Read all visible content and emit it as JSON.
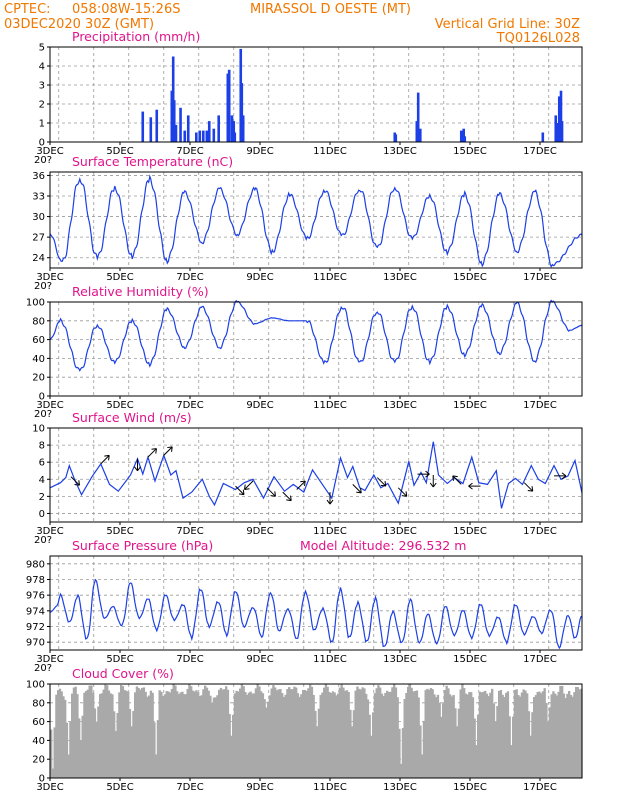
{
  "header": {
    "line1_left": "CPTEC:",
    "coords": "058:08W-15:26S",
    "station": "MIRASSOL D OESTE (MT)",
    "run": "03DEC2020 30Z (GMT)",
    "grid_note": "Vertical Grid Line: 30Z",
    "model": "TQ0126L028",
    "stray_glyph": "20?"
  },
  "chart_data": [
    {
      "id": "precip",
      "type": "bar",
      "title": "Precipitation (mm/h)",
      "ylim": [
        0,
        5
      ],
      "yticks": [
        "0",
        "1",
        "2",
        "3",
        "4",
        "5"
      ],
      "x_unit": "days since 03DEC 00Z",
      "xlim": [
        0,
        15.2
      ],
      "x_ticks": [
        "3DEC",
        "5DEC",
        "7DEC",
        "9DEC",
        "11DEC",
        "13DEC",
        "15DEC",
        "17DEC"
      ],
      "values": [
        [
          2.65,
          1.6
        ],
        [
          2.88,
          1.3
        ],
        [
          3.05,
          1.7
        ],
        [
          3.48,
          2.7
        ],
        [
          3.52,
          4.5
        ],
        [
          3.55,
          2.2
        ],
        [
          3.6,
          0.9
        ],
        [
          3.73,
          1.8
        ],
        [
          3.85,
          0.6
        ],
        [
          3.95,
          1.4
        ],
        [
          4.18,
          0.5
        ],
        [
          4.28,
          0.6
        ],
        [
          4.38,
          0.6
        ],
        [
          4.48,
          0.6
        ],
        [
          4.55,
          1.1
        ],
        [
          4.68,
          0.7
        ],
        [
          4.82,
          1.4
        ],
        [
          5.08,
          3.6
        ],
        [
          5.12,
          3.8
        ],
        [
          5.2,
          1.4
        ],
        [
          5.25,
          1.1
        ],
        [
          5.28,
          0.5
        ],
        [
          5.45,
          4.9
        ],
        [
          5.48,
          3.1
        ],
        [
          5.52,
          1.4
        ],
        [
          9.85,
          0.5
        ],
        [
          9.88,
          0.4
        ],
        [
          10.48,
          1.1
        ],
        [
          10.52,
          2.6
        ],
        [
          10.58,
          0.7
        ],
        [
          11.75,
          0.6
        ],
        [
          11.8,
          0.5
        ],
        [
          11.82,
          0.7
        ],
        [
          11.85,
          0.3
        ],
        [
          14.08,
          0.5
        ],
        [
          14.45,
          1.4
        ],
        [
          14.5,
          1.0
        ],
        [
          14.55,
          2.4
        ],
        [
          14.6,
          2.7
        ],
        [
          14.63,
          1.1
        ]
      ]
    },
    {
      "id": "temp",
      "type": "line",
      "title": "Surface Temperature (nC)",
      "ylim": [
        22.5,
        36.5
      ],
      "yticks": [
        "24",
        "27",
        "30",
        "33",
        "36"
      ],
      "ytick_values": [
        24,
        27,
        30,
        33,
        36
      ],
      "x_unit": "days since 03DEC 00Z",
      "xlim": [
        0,
        15.2
      ],
      "x_ticks": [
        "3DEC",
        "5DEC",
        "7DEC",
        "9DEC",
        "11DEC",
        "13DEC",
        "15DEC",
        "17DEC"
      ],
      "lows": [
        [
          0.35,
          23.3
        ],
        [
          1.35,
          24.0
        ],
        [
          2.35,
          24.2
        ],
        [
          3.35,
          23.6
        ],
        [
          4.35,
          26.3
        ],
        [
          5.35,
          27.4
        ],
        [
          6.35,
          24.9
        ],
        [
          7.35,
          26.8
        ],
        [
          8.35,
          27.2
        ],
        [
          9.35,
          25.4
        ],
        [
          10.35,
          26.8
        ],
        [
          11.35,
          24.8
        ],
        [
          12.35,
          23.2
        ],
        [
          13.35,
          25.0
        ],
        [
          14.35,
          23.0
        ]
      ],
      "highs": [
        [
          0.85,
          35.5
        ],
        [
          1.85,
          34.2
        ],
        [
          2.85,
          35.4
        ],
        [
          3.85,
          33.5
        ],
        [
          4.85,
          34.0
        ],
        [
          5.85,
          34.0
        ],
        [
          6.85,
          33.2
        ],
        [
          7.85,
          33.8
        ],
        [
          8.85,
          34.0
        ],
        [
          9.85,
          34.2
        ],
        [
          10.85,
          33.0
        ],
        [
          11.85,
          33.2
        ],
        [
          12.85,
          33.2
        ],
        [
          13.85,
          33.5
        ]
      ],
      "end": [
        15.2,
        27.3
      ]
    },
    {
      "id": "rh",
      "type": "line",
      "title": "Relative Humidity (%)",
      "ylim": [
        0,
        100
      ],
      "yticks": [
        "0",
        "20",
        "40",
        "60",
        "80",
        "100"
      ],
      "ytick_values": [
        0,
        20,
        40,
        60,
        80,
        100
      ],
      "x_unit": "days since 03DEC 00Z",
      "xlim": [
        0,
        15.2
      ],
      "x_ticks": [
        "3DEC",
        "5DEC",
        "7DEC",
        "9DEC",
        "11DEC",
        "13DEC",
        "15DEC",
        "17DEC"
      ],
      "lows": [
        [
          0.85,
          27
        ],
        [
          1.85,
          36
        ],
        [
          2.85,
          34
        ],
        [
          3.85,
          52
        ],
        [
          4.85,
          52
        ],
        [
          5.85,
          77
        ],
        [
          6.85,
          80
        ],
        [
          7.85,
          35
        ],
        [
          8.85,
          35
        ],
        [
          9.85,
          36
        ],
        [
          10.85,
          36
        ],
        [
          11.85,
          44
        ],
        [
          12.85,
          46
        ],
        [
          13.85,
          38
        ],
        [
          14.85,
          70
        ]
      ],
      "highs": [
        [
          0.3,
          80
        ],
        [
          1.35,
          75
        ],
        [
          2.35,
          80
        ],
        [
          3.35,
          92
        ],
        [
          4.35,
          94
        ],
        [
          5.35,
          100
        ],
        [
          6.35,
          83
        ],
        [
          7.35,
          80
        ],
        [
          8.35,
          95
        ],
        [
          9.35,
          90
        ],
        [
          10.35,
          95
        ],
        [
          11.35,
          95
        ],
        [
          12.35,
          96
        ],
        [
          13.35,
          98
        ],
        [
          14.35,
          100
        ]
      ],
      "end": [
        15.2,
        75
      ]
    },
    {
      "id": "wind",
      "type": "line",
      "title": "Surface Wind (m/s)",
      "ylim": [
        -1,
        10
      ],
      "yticks": [
        "0",
        "2",
        "4",
        "6",
        "8",
        "10"
      ],
      "ytick_values": [
        0,
        2,
        4,
        6,
        8,
        10
      ],
      "x_unit": "days since 03DEC 00Z",
      "xlim": [
        0,
        15.2
      ],
      "x_ticks": [
        "3DEC",
        "5DEC",
        "7DEC",
        "9DEC",
        "11DEC",
        "13DEC",
        "15DEC",
        "17DEC"
      ],
      "points": [
        [
          0,
          3.0
        ],
        [
          0.3,
          3.6
        ],
        [
          0.45,
          4.2
        ],
        [
          0.55,
          5.6
        ],
        [
          0.7,
          4.0
        ],
        [
          0.9,
          2.2
        ],
        [
          1.2,
          4.3
        ],
        [
          1.45,
          5.8
        ],
        [
          1.7,
          3.4
        ],
        [
          1.95,
          2.6
        ],
        [
          2.3,
          4.5
        ],
        [
          2.5,
          6.4
        ],
        [
          2.65,
          4.6
        ],
        [
          2.8,
          6.6
        ],
        [
          3.0,
          3.8
        ],
        [
          3.25,
          6.8
        ],
        [
          3.45,
          4.5
        ],
        [
          3.6,
          5.0
        ],
        [
          3.8,
          1.8
        ],
        [
          4.05,
          2.5
        ],
        [
          4.35,
          4.0
        ],
        [
          4.55,
          2.0
        ],
        [
          4.7,
          1.0
        ],
        [
          4.95,
          3.5
        ],
        [
          5.3,
          2.8
        ],
        [
          5.55,
          3.6
        ],
        [
          5.8,
          4.0
        ],
        [
          6.1,
          1.8
        ],
        [
          6.4,
          4.3
        ],
        [
          6.7,
          2.6
        ],
        [
          6.95,
          3.4
        ],
        [
          7.25,
          2.5
        ],
        [
          7.5,
          5.1
        ],
        [
          7.8,
          3.3
        ],
        [
          8.05,
          1.8
        ],
        [
          8.3,
          6.5
        ],
        [
          8.5,
          4.2
        ],
        [
          8.65,
          5.5
        ],
        [
          8.85,
          3.0
        ],
        [
          9.0,
          2.7
        ],
        [
          9.25,
          4.5
        ],
        [
          9.45,
          3.0
        ],
        [
          9.65,
          3.5
        ],
        [
          9.95,
          1.2
        ],
        [
          10.25,
          6.1
        ],
        [
          10.4,
          3.3
        ],
        [
          10.6,
          4.8
        ],
        [
          10.75,
          3.6
        ],
        [
          10.95,
          8.4
        ],
        [
          11.1,
          4.5
        ],
        [
          11.35,
          3.5
        ],
        [
          11.55,
          4.2
        ],
        [
          11.8,
          3.5
        ],
        [
          12.05,
          6.6
        ],
        [
          12.25,
          3.6
        ],
        [
          12.5,
          3.4
        ],
        [
          12.75,
          5.0
        ],
        [
          12.9,
          0.6
        ],
        [
          13.1,
          3.5
        ],
        [
          13.3,
          4.1
        ],
        [
          13.5,
          3.4
        ],
        [
          13.75,
          5.6
        ],
        [
          13.95,
          4.0
        ],
        [
          14.15,
          3.5
        ],
        [
          14.4,
          5.6
        ],
        [
          14.6,
          4.0
        ],
        [
          14.8,
          4.4
        ],
        [
          15.0,
          6.2
        ],
        [
          15.2,
          2.4
        ]
      ],
      "arrows": [
        [
          0.6,
          4.3,
          1,
          -1
        ],
        [
          1.45,
          5.8,
          1,
          1
        ],
        [
          2.5,
          6.4,
          0,
          -1
        ],
        [
          2.8,
          6.6,
          1,
          1
        ],
        [
          3.25,
          6.8,
          1,
          1
        ],
        [
          5.3,
          3.2,
          1,
          -1
        ],
        [
          5.8,
          3.8,
          -1,
          -1
        ],
        [
          6.2,
          3.0,
          1,
          -1
        ],
        [
          6.65,
          2.5,
          1,
          -1
        ],
        [
          7.05,
          2.8,
          1,
          1
        ],
        [
          8.0,
          2.5,
          0,
          -1
        ],
        [
          8.65,
          3.4,
          1,
          -1
        ],
        [
          9.35,
          4.2,
          1,
          -1
        ],
        [
          9.95,
          3.0,
          1,
          -1
        ],
        [
          10.5,
          4.6,
          1,
          0
        ],
        [
          10.95,
          4.5,
          0,
          -1
        ],
        [
          11.75,
          3.4,
          -1,
          1
        ],
        [
          12.3,
          3.2,
          -1,
          0
        ],
        [
          13.55,
          3.6,
          1,
          -1
        ],
        [
          14.4,
          4.4,
          1,
          0
        ]
      ]
    },
    {
      "id": "pressure",
      "type": "line",
      "title": "Surface Pressure (hPa)",
      "annotation": "Model Altitude: 296.532 m",
      "ylim": [
        969,
        981
      ],
      "yticks": [
        "970",
        "972",
        "974",
        "976",
        "978",
        "980"
      ],
      "ytick_values": [
        970,
        972,
        974,
        976,
        978,
        980
      ],
      "x_unit": "days since 03DEC 00Z",
      "xlim": [
        0,
        15.2
      ],
      "x_ticks": [
        "3DEC",
        "5DEC",
        "7DEC",
        "9DEC",
        "11DEC",
        "13DEC",
        "15DEC",
        "17DEC"
      ],
      "lows": [
        [
          0.55,
          972.5
        ],
        [
          1.05,
          970.2
        ],
        [
          1.55,
          973.0
        ],
        [
          2.05,
          972.0
        ],
        [
          2.55,
          973.0
        ],
        [
          3.05,
          971.5
        ],
        [
          3.55,
          972.8
        ],
        [
          4.05,
          970.6
        ],
        [
          4.55,
          972.0
        ],
        [
          5.05,
          971.0
        ],
        [
          5.55,
          972.0
        ],
        [
          6.05,
          970.8
        ],
        [
          6.55,
          971.5
        ],
        [
          7.05,
          970.5
        ],
        [
          7.55,
          971.6
        ],
        [
          8.05,
          970.0
        ],
        [
          8.55,
          970.6
        ],
        [
          9.05,
          970.0
        ],
        [
          9.55,
          969.3
        ],
        [
          10.05,
          969.8
        ],
        [
          10.55,
          969.8
        ],
        [
          11.05,
          969.7
        ],
        [
          11.55,
          970.8
        ],
        [
          12.05,
          970.5
        ],
        [
          12.55,
          970.8
        ],
        [
          13.05,
          970.0
        ],
        [
          13.55,
          971.0
        ],
        [
          14.05,
          971.2
        ],
        [
          14.55,
          969.4
        ],
        [
          15.0,
          970.5
        ]
      ],
      "highs": [
        [
          0.3,
          976.0
        ],
        [
          0.8,
          975.8
        ],
        [
          1.3,
          977.8
        ],
        [
          1.8,
          974.5
        ],
        [
          2.3,
          977.5
        ],
        [
          2.8,
          975.5
        ],
        [
          3.3,
          976.0
        ],
        [
          3.8,
          974.8
        ],
        [
          4.3,
          976.8
        ],
        [
          4.8,
          975.2
        ],
        [
          5.3,
          976.6
        ],
        [
          5.8,
          974.5
        ],
        [
          6.3,
          976.4
        ],
        [
          6.8,
          974.3
        ],
        [
          7.3,
          976.5
        ],
        [
          7.8,
          974.3
        ],
        [
          8.3,
          976.8
        ],
        [
          8.8,
          975.0
        ],
        [
          9.3,
          975.5
        ],
        [
          9.8,
          973.8
        ],
        [
          10.3,
          975.3
        ],
        [
          10.8,
          973.5
        ],
        [
          11.3,
          974.5
        ],
        [
          11.8,
          974.0
        ],
        [
          12.3,
          974.8
        ],
        [
          12.8,
          973.2
        ],
        [
          13.3,
          974.8
        ],
        [
          13.8,
          973.3
        ],
        [
          14.3,
          974.2
        ],
        [
          14.8,
          973.5
        ]
      ],
      "points_head": [
        [
          0,
          973.8
        ],
        [
          0.2,
          974.6
        ]
      ],
      "end": [
        15.2,
        973.3
      ]
    },
    {
      "id": "cloud",
      "type": "area",
      "title": "Cloud Cover (%)",
      "ylim": [
        0,
        100
      ],
      "yticks": [
        "0",
        "20",
        "40",
        "60",
        "80",
        "100"
      ],
      "ytick_values": [
        0,
        20,
        40,
        60,
        80,
        100
      ],
      "x_unit": "days since 03DEC 00Z",
      "xlim": [
        0,
        15.2
      ],
      "x_ticks": [
        "3DEC",
        "5DEC",
        "7DEC",
        "9DEC",
        "11DEC",
        "13DEC",
        "15DEC",
        "17DEC"
      ],
      "step": 0.05,
      "base_level": 93,
      "dips": [
        [
          0.05,
          10
        ],
        [
          0.5,
          25
        ],
        [
          0.85,
          40
        ],
        [
          1.3,
          60
        ],
        [
          1.85,
          50
        ],
        [
          2.3,
          55
        ],
        [
          3.0,
          25
        ],
        [
          4.6,
          80
        ],
        [
          5.15,
          45
        ],
        [
          6.15,
          75
        ],
        [
          7.6,
          55
        ],
        [
          8.6,
          55
        ],
        [
          9.15,
          45
        ],
        [
          10.0,
          15
        ],
        [
          10.6,
          25
        ],
        [
          11.15,
          65
        ],
        [
          11.6,
          55
        ],
        [
          12.15,
          35
        ],
        [
          12.7,
          60
        ],
        [
          13.15,
          35
        ],
        [
          13.7,
          45
        ],
        [
          14.2,
          60
        ],
        [
          14.7,
          85
        ]
      ]
    }
  ]
}
